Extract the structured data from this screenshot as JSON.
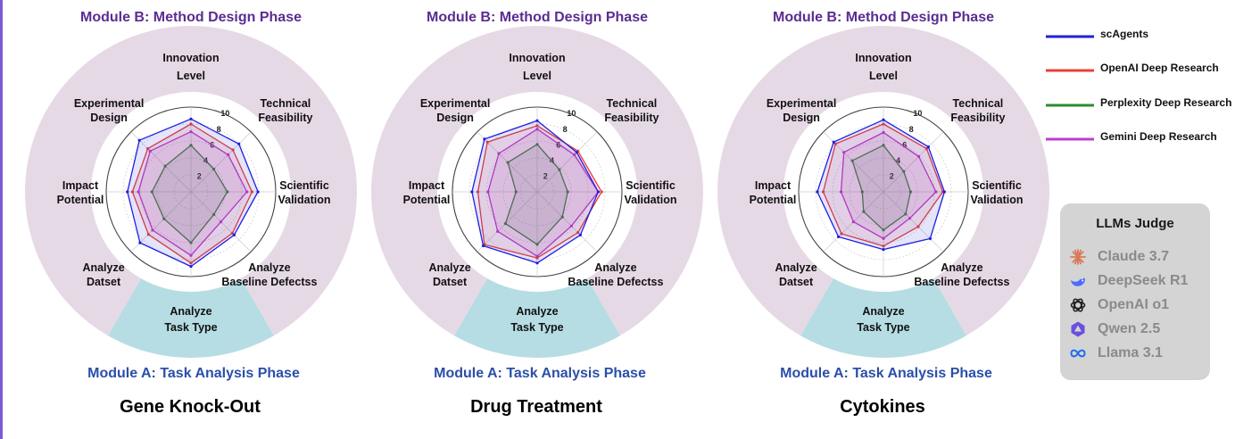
{
  "axes": [
    "Innovation Level",
    "Technical Feasibility",
    "Scientific Validation",
    "Analyze Baseline Defectss",
    "Analyze Task Type",
    "Analyze Datset",
    "Impact Potential",
    "Experimental Design"
  ],
  "module_b_label": "Module B: Method Design Phase",
  "module_a_label": "Module A: Task Analysis Phase",
  "legend": [
    {
      "name": "scAgents",
      "color": "#1f1fdf"
    },
    {
      "name": "OpenAI Deep Research",
      "color": "#e8413a"
    },
    {
      "name": "Perplexity Deep Research",
      "color": "#2e8b2e"
    },
    {
      "name": "Gemini Deep Research",
      "color": "#c03ccf"
    }
  ],
  "colors": {
    "module_b_band": "#e6d9e6",
    "module_a_band": "#b6dde3",
    "module_b_text": "#5a2d91",
    "module_a_text": "#2a4fa8"
  },
  "judge": {
    "title": "LLMs Judge",
    "items": [
      {
        "label": "Claude 3.7",
        "icon": "claude-icon"
      },
      {
        "label": "DeepSeek R1",
        "icon": "deepseek-icon"
      },
      {
        "label": "OpenAI o1",
        "icon": "openai-icon"
      },
      {
        "label": "Qwen 2.5",
        "icon": "qwen-icon"
      },
      {
        "label": "Llama 3.1",
        "icon": "llama-icon"
      }
    ]
  },
  "chart_data": [
    {
      "type": "radar",
      "title": "Gene Knock-Out",
      "categories": [
        "Innovation Level",
        "Technical Feasibility",
        "Scientific Validation",
        "Analyze Baseline Defectss",
        "Analyze Task Type",
        "Analyze Datset",
        "Impact Potential",
        "Experimental Design"
      ],
      "rlim": [
        0,
        10
      ],
      "rticks": [
        2,
        4,
        6,
        8,
        10
      ],
      "series": [
        {
          "name": "scAgents",
          "values": [
            8.6,
            8.0,
            7.9,
            7.2,
            8.8,
            8.5,
            7.5,
            8.6
          ]
        },
        {
          "name": "OpenAI Deep Research",
          "values": [
            8.0,
            7.0,
            7.2,
            6.9,
            8.4,
            7.1,
            6.9,
            7.2
          ]
        },
        {
          "name": "Perplexity Deep Research",
          "values": [
            5.5,
            3.8,
            4.3,
            3.8,
            6.0,
            4.5,
            4.6,
            4.3
          ]
        },
        {
          "name": "Gemini Deep Research",
          "values": [
            7.1,
            6.2,
            6.6,
            5.0,
            7.5,
            6.4,
            6.2,
            6.8
          ]
        }
      ]
    },
    {
      "type": "radar",
      "title": "Drug Treatment",
      "categories": [
        "Innovation Level",
        "Technical Feasibility",
        "Scientific Validation",
        "Analyze Baseline Defectss",
        "Analyze Task Type",
        "Analyze Datset",
        "Impact Potential",
        "Experimental Design"
      ],
      "rlim": [
        0,
        10
      ],
      "rticks": [
        2,
        4,
        6,
        8,
        10
      ],
      "series": [
        {
          "name": "scAgents",
          "values": [
            8.4,
            6.6,
            7.2,
            7.2,
            8.4,
            9.0,
            7.7,
            8.8
          ]
        },
        {
          "name": "OpenAI Deep Research",
          "values": [
            7.8,
            6.8,
            7.6,
            6.8,
            7.8,
            8.8,
            7.0,
            8.3
          ]
        },
        {
          "name": "Perplexity Deep Research",
          "values": [
            5.6,
            3.7,
            3.6,
            4.2,
            6.2,
            5.3,
            2.5,
            4.9
          ]
        },
        {
          "name": "Gemini Deep Research",
          "values": [
            7.4,
            6.2,
            7.2,
            5.7,
            7.6,
            6.6,
            5.8,
            6.4
          ]
        }
      ]
    },
    {
      "type": "radar",
      "title": "Cytokines",
      "categories": [
        "Innovation Level",
        "Technical Feasibility",
        "Scientific Validation",
        "Analyze Baseline Defectss",
        "Analyze Task Type",
        "Analyze Datset",
        "Impact Potential",
        "Experimental Design"
      ],
      "rlim": [
        0,
        10
      ],
      "rticks": [
        2,
        4,
        6,
        8,
        10
      ],
      "series": [
        {
          "name": "scAgents",
          "values": [
            8.5,
            7.5,
            7.2,
            7.8,
            6.8,
            7.5,
            7.8,
            8.3
          ]
        },
        {
          "name": "OpenAI Deep Research",
          "values": [
            8.0,
            7.2,
            7.0,
            5.8,
            6.4,
            7.0,
            7.1,
            8.0
          ]
        },
        {
          "name": "Perplexity Deep Research",
          "values": [
            5.5,
            3.4,
            3.2,
            3.7,
            4.5,
            3.3,
            2.5,
            5.2
          ]
        },
        {
          "name": "Gemini Deep Research",
          "values": [
            7.0,
            5.9,
            6.2,
            4.4,
            5.5,
            5.0,
            5.0,
            6.6
          ]
        }
      ]
    }
  ]
}
